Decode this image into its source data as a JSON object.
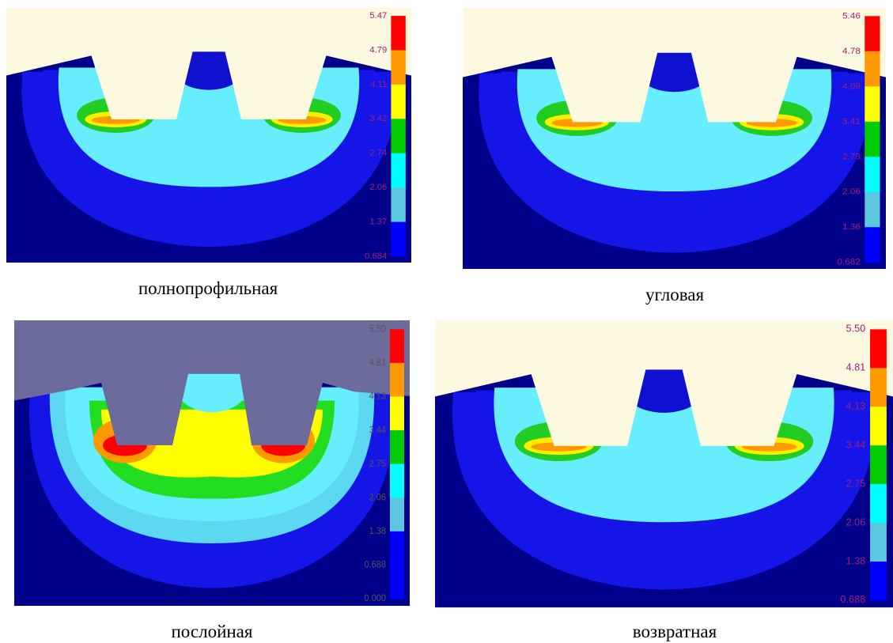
{
  "panels": [
    {
      "caption": "полнопрофильная",
      "scale": [
        "5.47",
        "4.79",
        "4.11",
        "3.42",
        "2.74",
        "2.06",
        "1.37",
        "0.684"
      ]
    },
    {
      "caption": "угловая",
      "scale": [
        "5.46",
        "4.78",
        "4.09",
        "3.41",
        "2.73",
        "2.06",
        "1.36",
        "0.682"
      ]
    },
    {
      "caption": "послойная",
      "scale": [
        "5.50",
        "4.81",
        "4.13",
        "3.44",
        "2.75",
        "2.06",
        "1.38",
        "0.688",
        "0.000"
      ]
    },
    {
      "caption": "возвратная",
      "scale": [
        "5.50",
        "4.81",
        "4.13",
        "3.44",
        "2.75",
        "2.06",
        "1.38",
        "0.688"
      ]
    }
  ]
}
